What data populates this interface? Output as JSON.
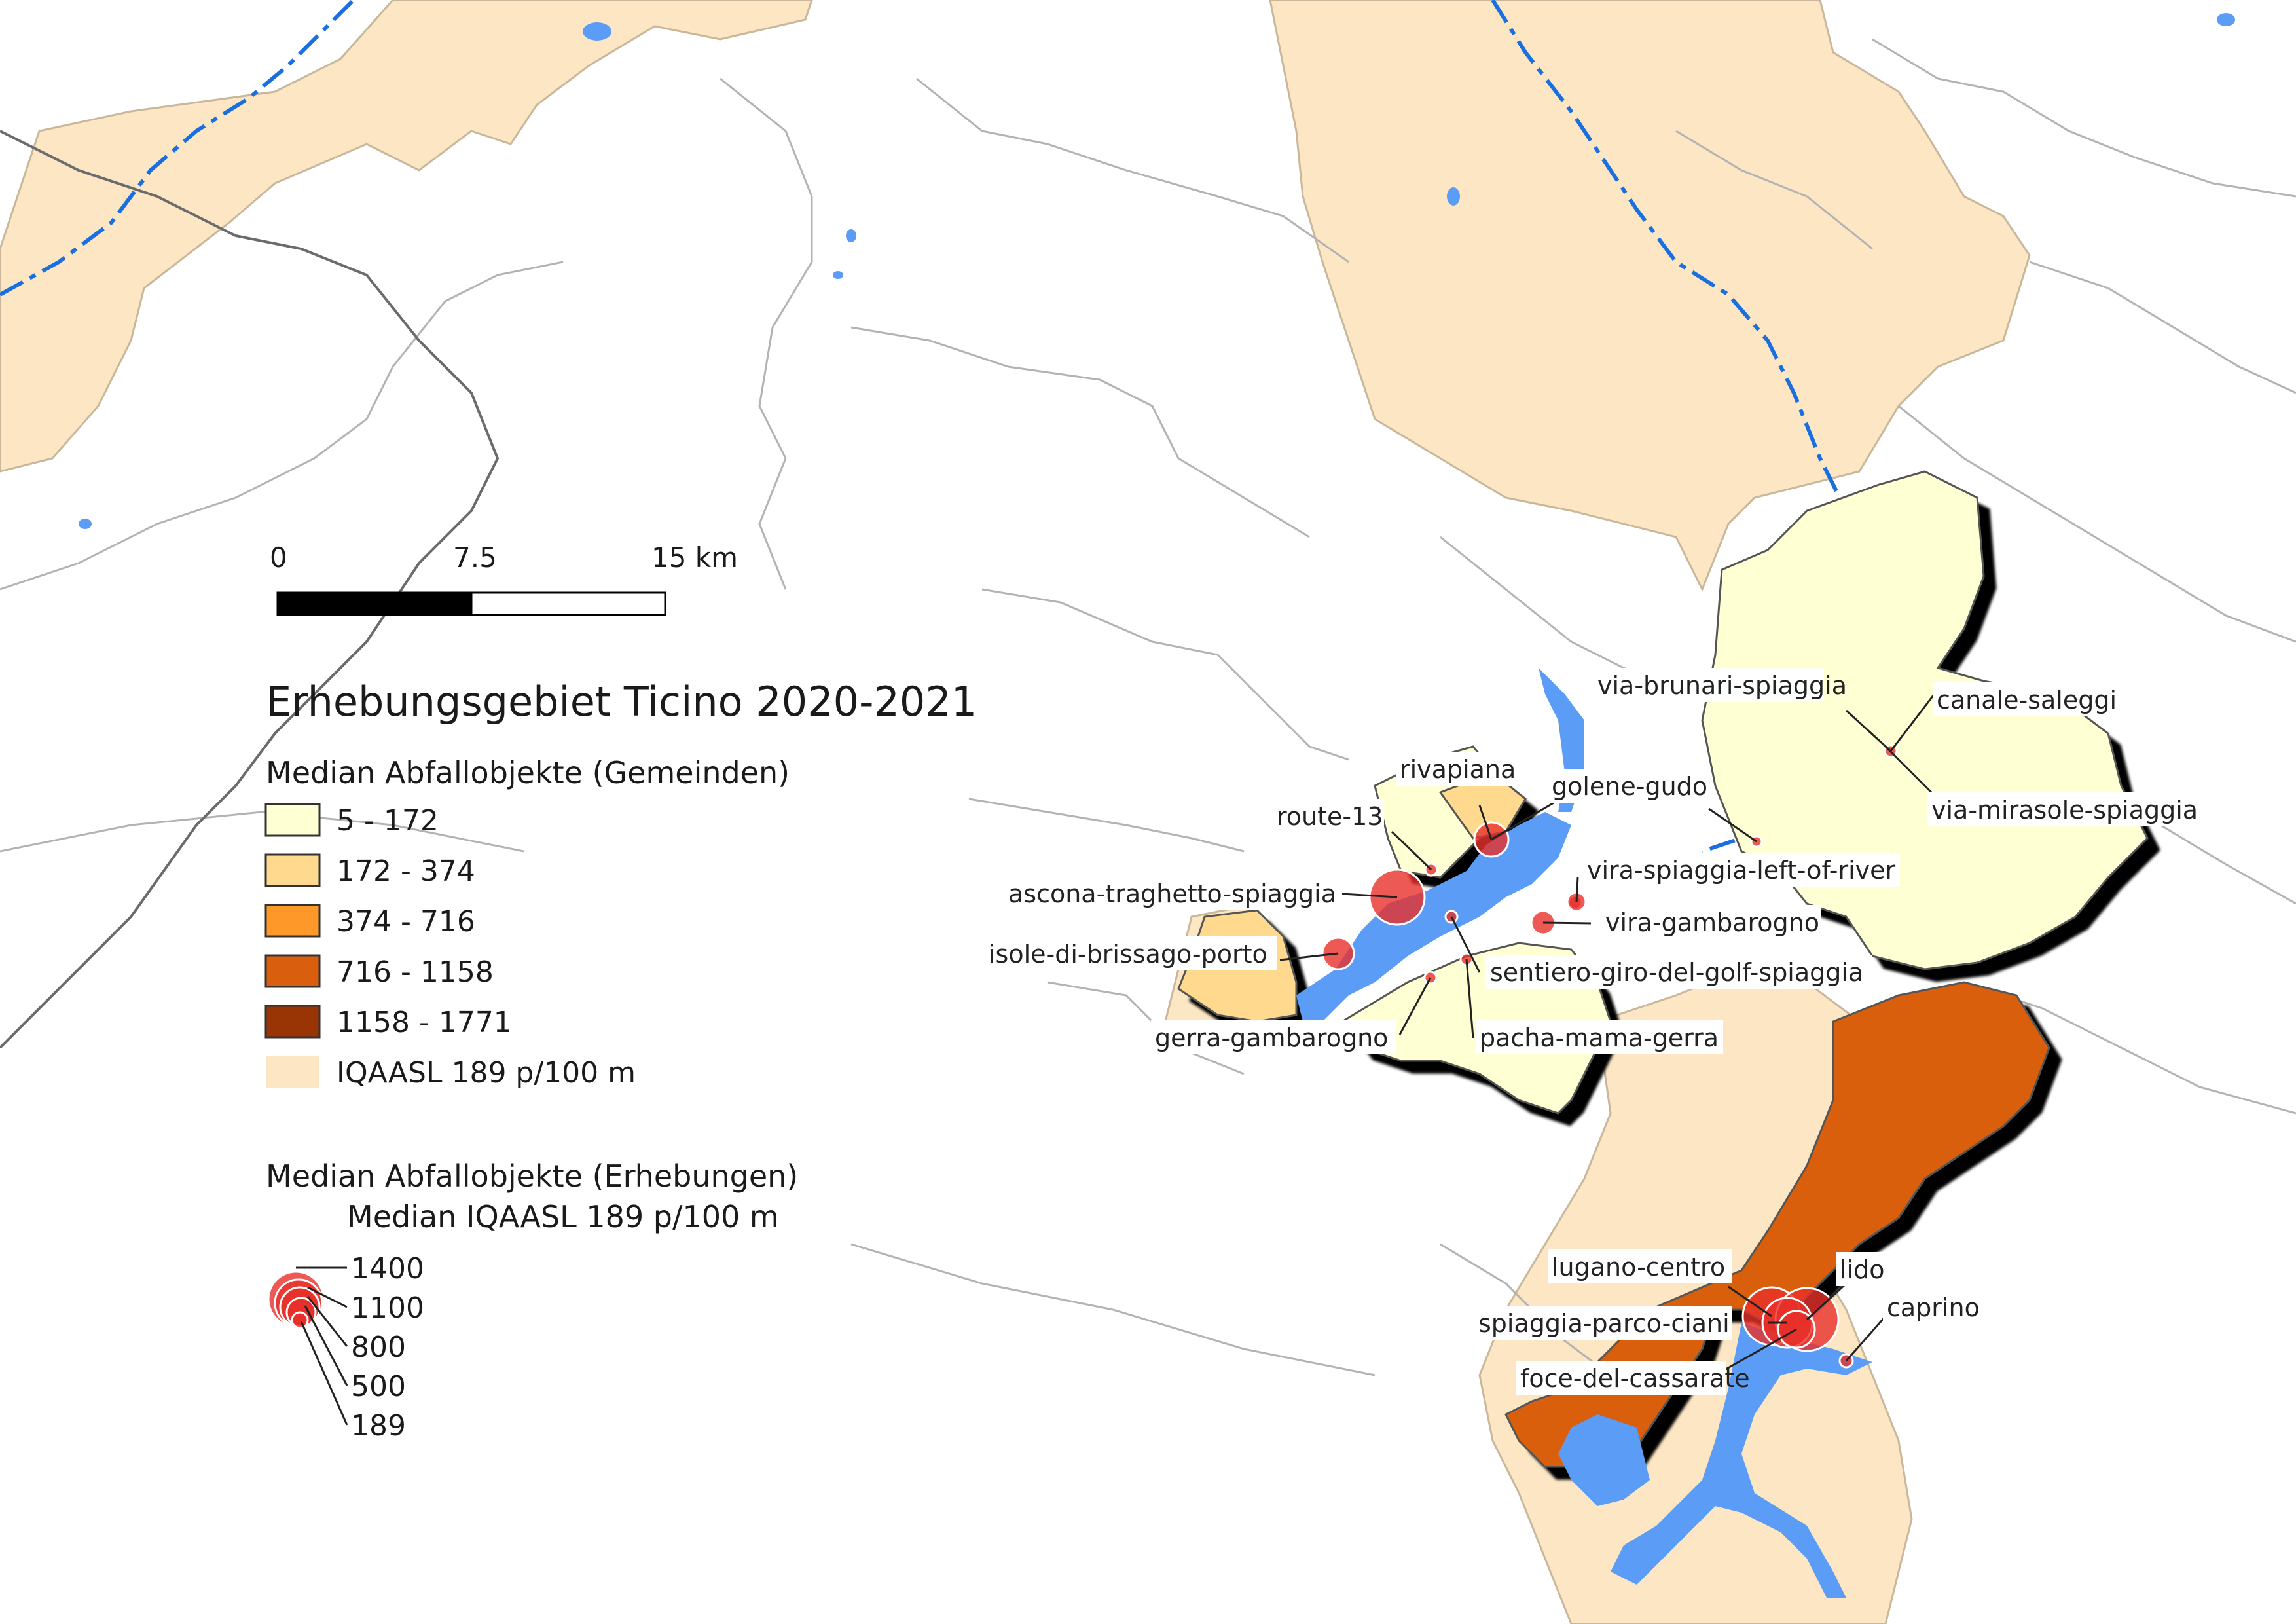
{
  "scale_bar": {
    "ticks": [
      "0",
      "7.5",
      "15 km"
    ]
  },
  "legend": {
    "title": "Erhebungsgebiet Ticino 2020-2021",
    "municipality_heading": "Median Abfallobjekte (Gemeinden)",
    "classes": [
      {
        "label": "5 - 172",
        "color": "#ffffd4"
      },
      {
        "label": "172 - 374",
        "color": "#fed98e"
      },
      {
        "label": "374 - 716",
        "color": "#fe9929"
      },
      {
        "label": "716 - 1158",
        "color": "#d95f0e"
      },
      {
        "label": "1158 - 1771",
        "color": "#993404"
      },
      {
        "label": "IQAASL 189 p/100 m",
        "color": "#fce6c4"
      }
    ],
    "survey_heading_1": "Median Abfallobjekte (Erhebungen)",
    "survey_heading_2": "Median IQAASL 189 p/100 m",
    "size_classes": [
      "1400",
      "1100",
      "800",
      "500",
      "189"
    ]
  },
  "colors": {
    "lake": "#5b9cf6",
    "river": "#1a6fe0",
    "border": "#9a9a9a",
    "survey_point": "#e8302a"
  },
  "sites": [
    {
      "label": "via-brunari-spiaggia"
    },
    {
      "label": "canale-saleggi"
    },
    {
      "label": "via-mirasole-spiaggia"
    },
    {
      "label": "rivapiana"
    },
    {
      "label": "golene-gudo"
    },
    {
      "label": "route-13"
    },
    {
      "label": "vira-spiaggia-left-of-river"
    },
    {
      "label": "ascona-traghetto-spiaggia"
    },
    {
      "label": "vira-gambarogno"
    },
    {
      "label": "isole-di-brissago-porto"
    },
    {
      "label": "sentiero-giro-del-golf-spiaggia"
    },
    {
      "label": "gerra-gambarogno"
    },
    {
      "label": "pacha-mama-gerra"
    },
    {
      "label": "lugano-centro"
    },
    {
      "label": "lido"
    },
    {
      "label": "caprino"
    },
    {
      "label": "spiaggia-parco-ciani"
    },
    {
      "label": "foce-del-cassarate"
    }
  ]
}
